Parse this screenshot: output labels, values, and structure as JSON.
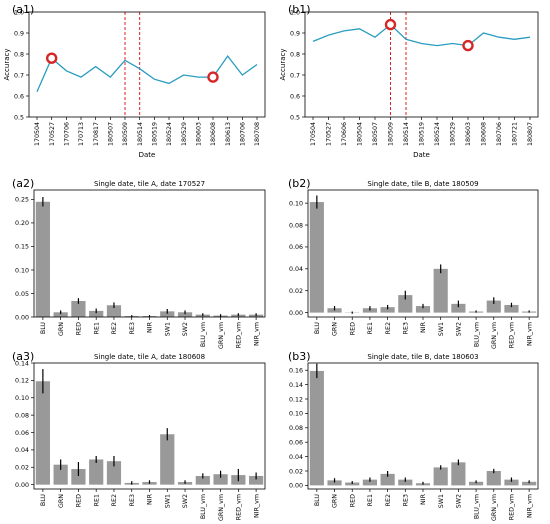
{
  "chart_data": [
    {
      "panel": "(a1)",
      "type": "line",
      "title": "",
      "xlabel": "Date",
      "ylabel": "Accuracy",
      "ylim": [
        0.5,
        1.0
      ],
      "yticks": [
        "0.5",
        "0.6",
        "0.7",
        "0.8",
        "0.9",
        "1.0"
      ],
      "x": [
        "170504",
        "170527",
        "170706",
        "170713",
        "170817",
        "180507",
        "180509",
        "180514",
        "180519",
        "180524",
        "180529",
        "180603",
        "180608",
        "180613",
        "180706",
        "180708"
      ],
      "y": [
        0.62,
        0.78,
        0.72,
        0.69,
        0.74,
        0.69,
        0.77,
        0.73,
        0.68,
        0.66,
        0.7,
        0.69,
        0.69,
        0.79,
        0.7,
        0.75
      ],
      "highlight_points": [
        "170527",
        "180608"
      ],
      "dashed_lines": [
        "180509",
        "180514"
      ],
      "line_color": "#2a9dc0",
      "marker_color": "#d62728",
      "dash_color": "#e02020"
    },
    {
      "panel": "(b1)",
      "type": "line",
      "title": "",
      "xlabel": "Date",
      "ylabel": "Accuracy",
      "ylim": [
        0.5,
        1.0
      ],
      "yticks": [
        "0.5",
        "0.6",
        "0.7",
        "0.8",
        "0.9",
        "1.0"
      ],
      "x": [
        "170504",
        "170527",
        "170606",
        "180504",
        "180507",
        "180509",
        "180514",
        "180519",
        "180524",
        "180529",
        "180603",
        "180608",
        "180706",
        "180721",
        "180807"
      ],
      "y": [
        0.86,
        0.89,
        0.91,
        0.92,
        0.88,
        0.94,
        0.87,
        0.85,
        0.84,
        0.85,
        0.84,
        0.9,
        0.88,
        0.87,
        0.88
      ],
      "highlight_points": [
        "180509",
        "180603"
      ],
      "dashed_lines": [
        "180509",
        "180514"
      ],
      "line_color": "#2a9dc0",
      "marker_color": "#d62728",
      "dash_color": "#e02020"
    },
    {
      "panel": "(a2)",
      "type": "bar",
      "title": "Single date, tile A, date 170527",
      "categories": [
        "BLU",
        "GRN",
        "RED",
        "RE1",
        "RE2",
        "RE3",
        "NIR",
        "SW1",
        "SW2",
        "BLU_vm",
        "GRN_vm",
        "RED_vm",
        "NIR_vm"
      ],
      "values": [
        0.245,
        0.01,
        0.034,
        0.013,
        0.025,
        0.002,
        0.002,
        0.012,
        0.01,
        0.005,
        0.003,
        0.005,
        0.005
      ],
      "errors": [
        0.01,
        0.004,
        0.006,
        0.005,
        0.006,
        0.002,
        0.002,
        0.005,
        0.004,
        0.003,
        0.003,
        0.003,
        0.003
      ],
      "ylim": [
        0,
        0.27
      ],
      "yticks": [
        "0.00",
        "0.05",
        "0.10",
        "0.15",
        "0.20",
        "0.25"
      ],
      "bar_color": "#999999"
    },
    {
      "panel": "(b2)",
      "type": "bar",
      "title": "Single date, tile B, date 180509",
      "categories": [
        "BLU",
        "GRN",
        "RED",
        "RE1",
        "RE2",
        "RE3",
        "NIR",
        "SW1",
        "SW2",
        "BLU_vm",
        "GRN_vm",
        "RED_vm",
        "NIR_vm"
      ],
      "values": [
        0.101,
        0.004,
        0.0,
        0.004,
        0.005,
        0.016,
        0.006,
        0.04,
        0.008,
        0.001,
        0.011,
        0.007,
        0.001
      ],
      "errors": [
        0.006,
        0.002,
        0.001,
        0.002,
        0.002,
        0.004,
        0.002,
        0.004,
        0.003,
        0.001,
        0.003,
        0.002,
        0.001
      ],
      "ylim": [
        -0.004,
        0.112
      ],
      "yticks": [
        "0.00",
        "0.02",
        "0.04",
        "0.06",
        "0.08",
        "0.10"
      ],
      "bar_color": "#999999"
    },
    {
      "panel": "(a3)",
      "type": "bar",
      "title": "Single date, tile A, date 180608",
      "categories": [
        "BLU",
        "GRN",
        "RED",
        "RE1",
        "RE2",
        "RE3",
        "NIR",
        "SW1",
        "SW2",
        "BLU_vm",
        "GRN_vm",
        "RED_vm",
        "NIR_vm"
      ],
      "values": [
        0.119,
        0.023,
        0.018,
        0.029,
        0.027,
        0.002,
        0.003,
        0.058,
        0.003,
        0.01,
        0.012,
        0.011,
        0.01
      ],
      "errors": [
        0.014,
        0.006,
        0.008,
        0.004,
        0.006,
        0.002,
        0.002,
        0.007,
        0.002,
        0.003,
        0.004,
        0.007,
        0.004
      ],
      "ylim": [
        -0.005,
        0.14
      ],
      "yticks": [
        "0.00",
        "0.02",
        "0.04",
        "0.06",
        "0.08",
        "0.10",
        "0.12",
        "0.14"
      ],
      "bar_color": "#999999"
    },
    {
      "panel": "(b3)",
      "type": "bar",
      "title": "Single date, tile B, date 180603",
      "categories": [
        "BLU",
        "GRN",
        "RED",
        "RE1",
        "RE2",
        "RE3",
        "NIR",
        "SW1",
        "SW2",
        "BLU_vm",
        "GRN_vm",
        "RED_vm",
        "NIR_vm"
      ],
      "values": [
        0.159,
        0.007,
        0.004,
        0.008,
        0.016,
        0.008,
        0.003,
        0.025,
        0.032,
        0.005,
        0.02,
        0.008,
        0.005
      ],
      "errors": [
        0.01,
        0.003,
        0.002,
        0.003,
        0.004,
        0.003,
        0.002,
        0.003,
        0.004,
        0.002,
        0.003,
        0.003,
        0.002
      ],
      "ylim": [
        -0.005,
        0.17
      ],
      "yticks": [
        "0.00",
        "0.02",
        "0.04",
        "0.06",
        "0.08",
        "0.10",
        "0.12",
        "0.14",
        "0.16"
      ],
      "bar_color": "#999999"
    }
  ]
}
